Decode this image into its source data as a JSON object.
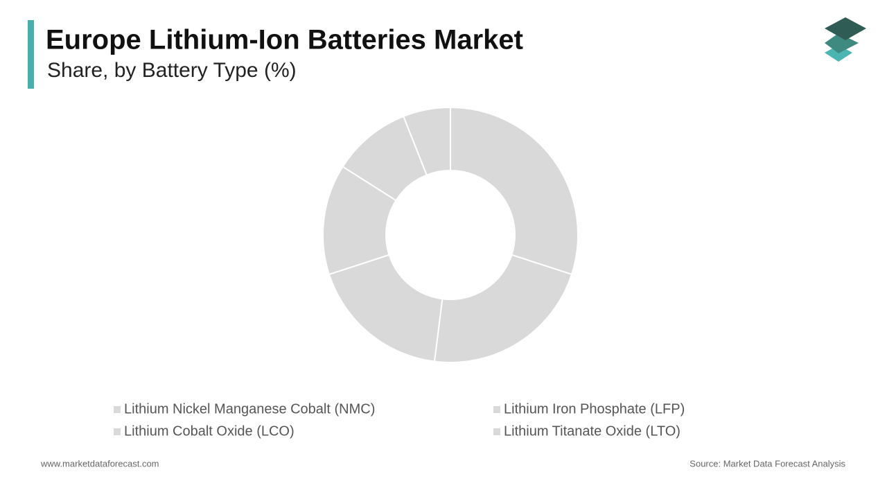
{
  "chart_data": {
    "type": "donut",
    "title": "Europe Lithium-Ion Batteries Market",
    "subtitle": "Share, by Battery Type (%)",
    "categories": [
      "Lithium Nickel Manganese Cobalt (NMC)",
      "Lithium Iron Phosphate (LFP)",
      "Lithium Cobalt Oxide (LCO)",
      "Lithium Titanate Oxide (LTO)",
      null,
      null
    ],
    "values": [
      30,
      22,
      18,
      14,
      10,
      6
    ],
    "color": "#d9d9d9",
    "website": "www.marketdataforecast.com",
    "source": "Source: Market Data Forecast Analysis"
  }
}
